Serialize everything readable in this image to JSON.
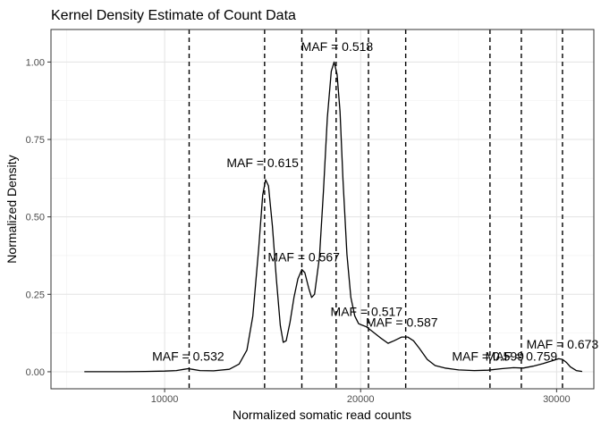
{
  "chart_data": {
    "type": "line",
    "title": "Kernel Density Estimate of Count Data",
    "xlabel": "Normalized somatic read counts",
    "ylabel": "Normalized Density",
    "xlim": [
      4200,
      31900
    ],
    "ylim": [
      -0.055,
      1.105
    ],
    "xticks": [
      10000,
      20000,
      30000
    ],
    "xtick_labels": [
      "10000",
      "20000",
      "30000"
    ],
    "yticks": [
      0.0,
      0.25,
      0.5,
      0.75,
      1.0
    ],
    "ytick_labels": [
      "0.00",
      "0.25",
      "0.50",
      "0.75",
      "1.00"
    ],
    "grid": true,
    "series": [
      {
        "x": [
          5900,
          7000,
          8000,
          9000,
          10000,
          10600,
          11000,
          11200,
          11400,
          11800,
          12500,
          13300,
          13800,
          14200,
          14500,
          14800,
          15000,
          15150,
          15300,
          15500,
          15700,
          15900,
          16050,
          16200,
          16400,
          16600,
          16800,
          17000,
          17150,
          17350,
          17500,
          17650,
          17900,
          18100,
          18300,
          18500,
          18650,
          18800,
          18950,
          19100,
          19300,
          19500,
          19700,
          19900,
          20100,
          20300,
          20600,
          21000,
          21400,
          21700,
          22100,
          22400,
          22700,
          23000,
          23400,
          23800,
          24300,
          25000,
          25800,
          26500,
          27200,
          27800,
          28300,
          28800,
          29300,
          29800,
          30100,
          30300,
          30500,
          30700,
          31000,
          31300
        ],
        "y": [
          0.0,
          0.0,
          0.0,
          0.001,
          0.002,
          0.004,
          0.008,
          0.01,
          0.008,
          0.004,
          0.003,
          0.008,
          0.025,
          0.07,
          0.18,
          0.4,
          0.57,
          0.62,
          0.6,
          0.47,
          0.3,
          0.15,
          0.095,
          0.1,
          0.16,
          0.24,
          0.3,
          0.33,
          0.32,
          0.27,
          0.24,
          0.25,
          0.37,
          0.58,
          0.82,
          0.97,
          1.0,
          0.96,
          0.84,
          0.62,
          0.38,
          0.24,
          0.18,
          0.155,
          0.15,
          0.145,
          0.13,
          0.11,
          0.092,
          0.1,
          0.112,
          0.112,
          0.1,
          0.075,
          0.04,
          0.02,
          0.012,
          0.006,
          0.004,
          0.005,
          0.01,
          0.013,
          0.012,
          0.018,
          0.026,
          0.036,
          0.042,
          0.04,
          0.03,
          0.016,
          0.004,
          0.001
        ]
      }
    ],
    "vlines": [
      11250,
      15100,
      17000,
      18750,
      20400,
      22300,
      26600,
      28200,
      30300
    ],
    "annotations": [
      {
        "text": "MAF = 0.532",
        "x": 11200,
        "y": 0.05
      },
      {
        "text": "MAF = 0.615",
        "x": 15000,
        "y": 0.675
      },
      {
        "text": "MAF = 0.567",
        "x": 17100,
        "y": 0.37
      },
      {
        "text": "MAF = 0.518",
        "x": 18800,
        "y": 1.05
      },
      {
        "text": "MAF = 0.517",
        "x": 20300,
        "y": 0.195
      },
      {
        "text": "MAF = 0.587",
        "x": 22100,
        "y": 0.16
      },
      {
        "text": "MAF = 0.599",
        "x": 26500,
        "y": 0.05
      },
      {
        "text": "MAF = 0.759",
        "x": 28200,
        "y": 0.05
      },
      {
        "text": "MAF = 0.673",
        "x": 30300,
        "y": 0.09
      }
    ]
  }
}
